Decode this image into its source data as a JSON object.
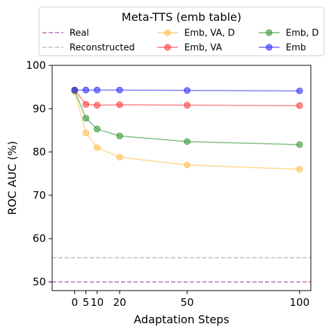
{
  "chart_data": {
    "type": "line",
    "title": "",
    "xlabel": "Adaptation Steps",
    "ylabel": "ROC AUC (%)",
    "xlim": [
      -10,
      105
    ],
    "ylim": [
      48,
      100
    ],
    "x_ticks": [
      0,
      5,
      10,
      20,
      50,
      100
    ],
    "y_ticks": [
      50,
      60,
      70,
      80,
      90,
      100
    ],
    "grid": false,
    "legend": {
      "title": "Meta-TTS (emb table)",
      "placement": "top",
      "columns": 3
    },
    "series": [
      {
        "name": "Real",
        "style": "dashed",
        "color": "#bf6fbf",
        "markers": false,
        "x": [
          -10,
          105
        ],
        "y": [
          50.0,
          50.0
        ]
      },
      {
        "name": "Reconstructed",
        "style": "dashed",
        "color": "#bdbdbd",
        "markers": false,
        "x": [
          -10,
          105
        ],
        "y": [
          55.6,
          55.6
        ]
      },
      {
        "name": "Emb, VA, D",
        "style": "solid",
        "color": "#ffc04d",
        "markers": true,
        "x": [
          0,
          5,
          10,
          20,
          50,
          100
        ],
        "y": [
          94.0,
          84.4,
          81.0,
          78.8,
          77.0,
          76.0
        ]
      },
      {
        "name": "Emb, VA",
        "style": "solid",
        "color": "#ff4040",
        "markers": true,
        "x": [
          0,
          5,
          10,
          20,
          50,
          100
        ],
        "y": [
          94.3,
          91.0,
          90.8,
          90.9,
          90.8,
          90.7
        ]
      },
      {
        "name": "Emb, D",
        "style": "solid",
        "color": "#3a9a3a",
        "markers": true,
        "x": [
          0,
          5,
          10,
          20,
          50,
          100
        ],
        "y": [
          94.2,
          87.8,
          85.3,
          83.7,
          82.4,
          81.7
        ]
      },
      {
        "name": "Emb",
        "style": "solid",
        "color": "#3333ff",
        "markers": true,
        "x": [
          0,
          5,
          10,
          20,
          50,
          100
        ],
        "y": [
          94.3,
          94.3,
          94.3,
          94.3,
          94.2,
          94.1
        ]
      }
    ]
  }
}
